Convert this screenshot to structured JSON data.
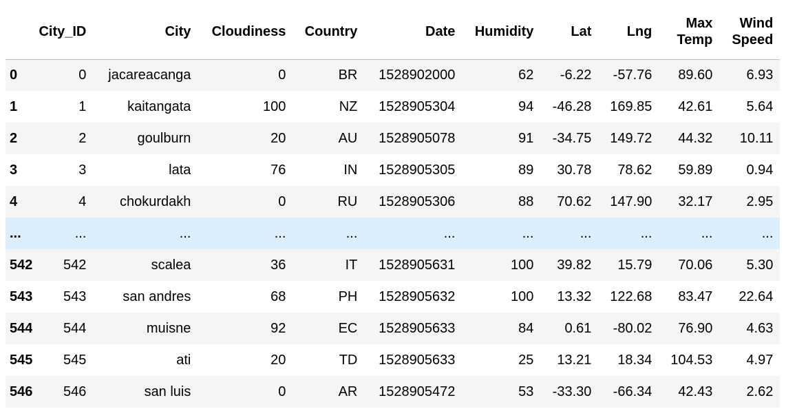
{
  "columns": [
    "City_ID",
    "City",
    "Cloudiness",
    "Country",
    "Date",
    "Humidity",
    "Lat",
    "Lng",
    "Max Temp",
    "Wind Speed"
  ],
  "rows": [
    {
      "index": "0",
      "cells": [
        "0",
        "jacareacanga",
        "0",
        "BR",
        "1528902000",
        "62",
        "-6.22",
        "-57.76",
        "89.60",
        "6.93"
      ]
    },
    {
      "index": "1",
      "cells": [
        "1",
        "kaitangata",
        "100",
        "NZ",
        "1528905304",
        "94",
        "-46.28",
        "169.85",
        "42.61",
        "5.64"
      ]
    },
    {
      "index": "2",
      "cells": [
        "2",
        "goulburn",
        "20",
        "AU",
        "1528905078",
        "91",
        "-34.75",
        "149.72",
        "44.32",
        "10.11"
      ]
    },
    {
      "index": "3",
      "cells": [
        "3",
        "lata",
        "76",
        "IN",
        "1528905305",
        "89",
        "30.78",
        "78.62",
        "59.89",
        "0.94"
      ]
    },
    {
      "index": "4",
      "cells": [
        "4",
        "chokurdakh",
        "0",
        "RU",
        "1528905306",
        "88",
        "70.62",
        "147.90",
        "32.17",
        "2.95"
      ]
    },
    {
      "index": "...",
      "cells": [
        "...",
        "...",
        "...",
        "...",
        "...",
        "...",
        "...",
        "...",
        "...",
        "..."
      ]
    },
    {
      "index": "542",
      "cells": [
        "542",
        "scalea",
        "36",
        "IT",
        "1528905631",
        "100",
        "39.82",
        "15.79",
        "70.06",
        "5.30"
      ]
    },
    {
      "index": "543",
      "cells": [
        "543",
        "san andres",
        "68",
        "PH",
        "1528905632",
        "100",
        "13.32",
        "122.68",
        "83.47",
        "22.64"
      ]
    },
    {
      "index": "544",
      "cells": [
        "544",
        "muisne",
        "92",
        "EC",
        "1528905633",
        "84",
        "0.61",
        "-80.02",
        "76.90",
        "4.63"
      ]
    },
    {
      "index": "545",
      "cells": [
        "545",
        "ati",
        "20",
        "TD",
        "1528905633",
        "25",
        "13.21",
        "18.34",
        "104.53",
        "4.97"
      ]
    },
    {
      "index": "546",
      "cells": [
        "546",
        "san luis",
        "0",
        "AR",
        "1528905472",
        "53",
        "-33.30",
        "-66.34",
        "42.43",
        "2.62"
      ]
    }
  ]
}
